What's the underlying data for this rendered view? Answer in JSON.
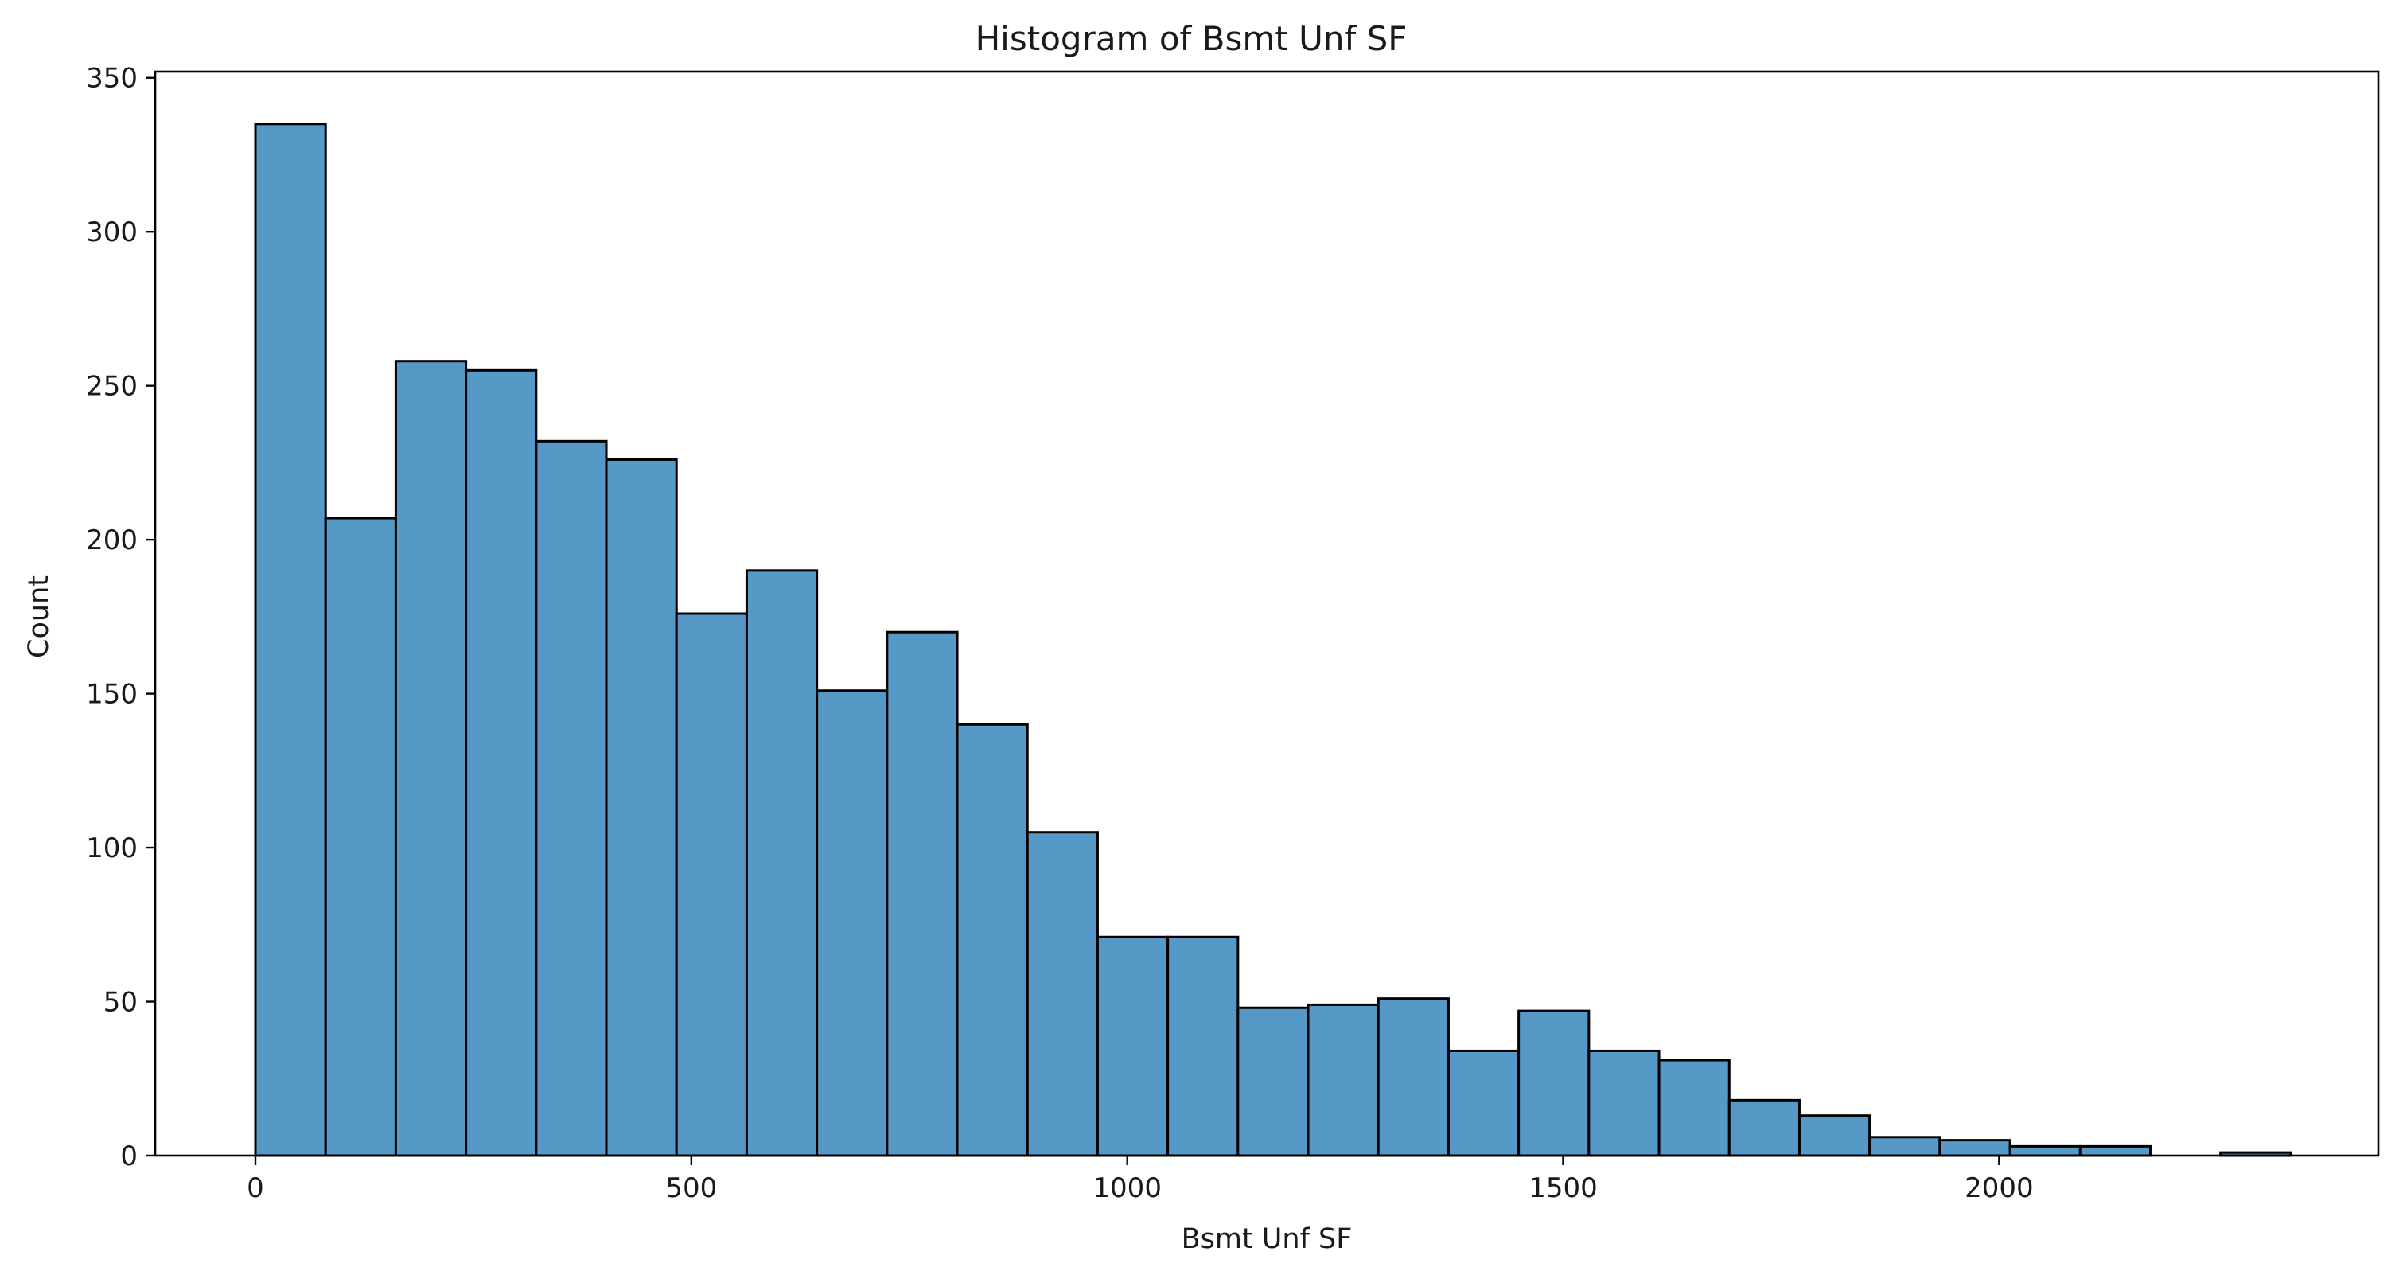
{
  "chart_data": {
    "type": "bar",
    "title": "Histogram of Bsmt Unf SF",
    "xlabel": "Bsmt Unf SF",
    "ylabel": "Count",
    "bin_start": 0,
    "bin_width": 80.5,
    "values": [
      335,
      207,
      258,
      255,
      232,
      226,
      176,
      190,
      151,
      170,
      140,
      105,
      71,
      71,
      48,
      49,
      51,
      34,
      47,
      34,
      31,
      18,
      13,
      6,
      5,
      3,
      3,
      0,
      1
    ],
    "xlim": [
      -115,
      2435
    ],
    "ylim": [
      0,
      352
    ],
    "xticks": [
      0,
      500,
      1000,
      1500,
      2000
    ],
    "xtick_labels": [
      "0",
      "500",
      "1000",
      "1500",
      "2000"
    ],
    "yticks": [
      0,
      50,
      100,
      150,
      200,
      250,
      300,
      350
    ],
    "ytick_labels": [
      "0",
      "50",
      "100",
      "150",
      "200",
      "250",
      "300",
      "350"
    ],
    "grid": false,
    "legend": "none",
    "colors": {
      "bar_fill": "#5799c6",
      "bar_edge": "#000000",
      "axis": "#000000"
    }
  }
}
